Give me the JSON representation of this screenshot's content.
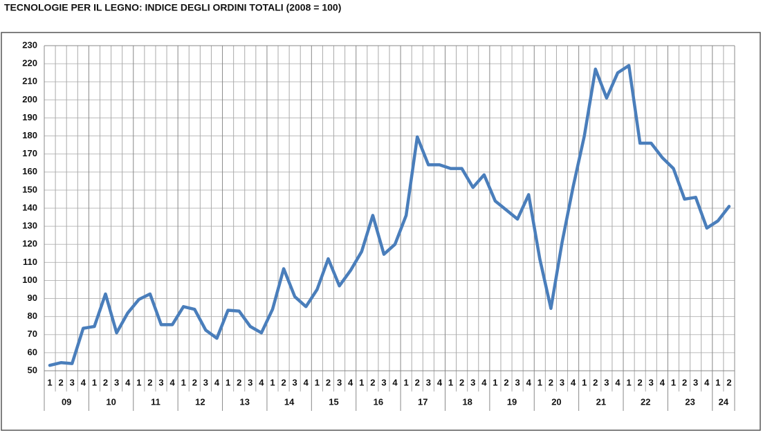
{
  "chart_data": {
    "type": "line",
    "title": "TECNOLOGIE PER IL LEGNO: INDICE DEGLI ORDINI TOTALI (2008 = 100)",
    "categories": [
      "1",
      "2",
      "3",
      "4",
      "1",
      "2",
      "3",
      "4",
      "1",
      "2",
      "3",
      "4",
      "1",
      "2",
      "3",
      "4",
      "1",
      "2",
      "3",
      "4",
      "1",
      "2",
      "3",
      "4",
      "1",
      "2",
      "3",
      "4",
      "1",
      "2",
      "3",
      "4",
      "1",
      "2",
      "3",
      "4",
      "1",
      "2",
      "3",
      "4",
      "1",
      "2",
      "3",
      "4",
      "1",
      "2",
      "3",
      "4",
      "1",
      "2",
      "3",
      "4",
      "1",
      "2",
      "3",
      "4",
      "1",
      "2",
      "3",
      "4",
      "1",
      "2"
    ],
    "years": [
      "09",
      "10",
      "11",
      "12",
      "13",
      "14",
      "15",
      "16",
      "17",
      "18",
      "19",
      "20",
      "21",
      "22",
      "23",
      "24"
    ],
    "series": [
      {
        "color": "#4a7ebb",
        "values": [
          53,
          54.5,
          54,
          73.5,
          74.5,
          92.5,
          71,
          82,
          89.5,
          92.5,
          75.5,
          75.5,
          85.5,
          84,
          72.5,
          68,
          83.5,
          83,
          74.5,
          71,
          84,
          106.5,
          91,
          85.5,
          95,
          112,
          97,
          105.5,
          116,
          136,
          114.5,
          120,
          136,
          179.5,
          164,
          164,
          162,
          162,
          151.5,
          158.5,
          144,
          139,
          134,
          147.5,
          112,
          84.5,
          121,
          152,
          180,
          217,
          201,
          215,
          219,
          176,
          176,
          168,
          162,
          145,
          146,
          129,
          133,
          141
        ]
      }
    ],
    "ylim": [
      50,
      230
    ],
    "yticks": [
      50,
      60,
      70,
      80,
      90,
      100,
      110,
      120,
      130,
      140,
      150,
      160,
      170,
      180,
      190,
      200,
      210,
      220,
      230
    ],
    "grid": true
  }
}
